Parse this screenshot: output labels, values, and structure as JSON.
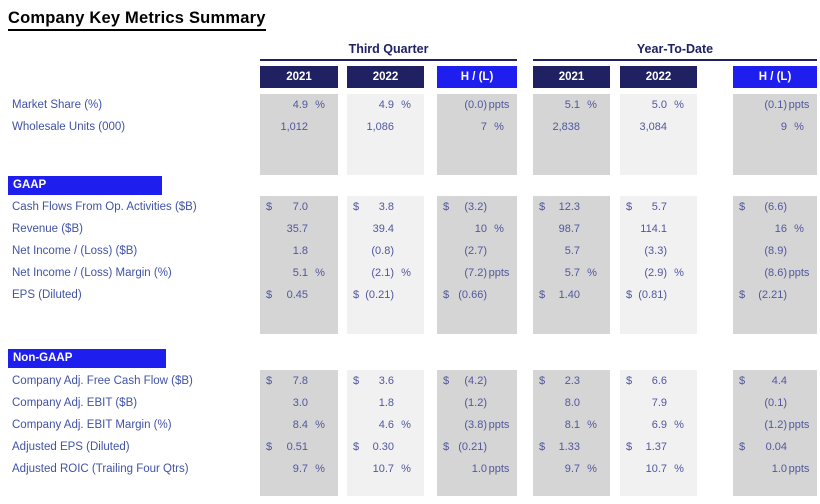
{
  "title": "Company Key Metrics Summary",
  "colors": {
    "navy": "#1F2163",
    "bright_blue": "#1E1EEF",
    "dark_cell": "#D5D5D5",
    "light_cell": "#F1F1F1",
    "label_text": "#4153A6",
    "value_text": "#50579F",
    "title_text": "#000000"
  },
  "groups": [
    {
      "label": "Third Quarter",
      "columns": [
        "2021",
        "2022",
        "H / (L)"
      ]
    },
    {
      "label": "Year-To-Date",
      "columns": [
        "2021",
        "2022",
        "H / (L)"
      ]
    }
  ],
  "sections": [
    {
      "header": "",
      "rows": [
        {
          "label": "Market Share (%)",
          "cells": [
            {
              "val": "4.9",
              "suf": "%"
            },
            {
              "val": "4.9",
              "suf": "%"
            },
            {
              "val": "(0.0)",
              "suf": "ppts"
            },
            {
              "val": "5.1",
              "suf": "%"
            },
            {
              "val": "5.0",
              "suf": "%"
            },
            {
              "val": "(0.1)",
              "suf": "ppts"
            }
          ]
        },
        {
          "label": "Wholesale Units (000)",
          "cells": [
            {
              "val": "1,012"
            },
            {
              "val": "1,086"
            },
            {
              "val": "7",
              "suf": "%"
            },
            {
              "val": "2,838"
            },
            {
              "val": "3,084"
            },
            {
              "val": "9",
              "suf": "%"
            }
          ]
        }
      ]
    },
    {
      "header": "GAAP",
      "rows": [
        {
          "label": "Cash Flows From Op. Activities ($B)",
          "cells": [
            {
              "cur": "$",
              "val": "7.0"
            },
            {
              "cur": "$",
              "val": "3.8"
            },
            {
              "cur": "$",
              "val": "(3.2)"
            },
            {
              "cur": "$",
              "val": "12.3"
            },
            {
              "cur": "$",
              "val": "5.7"
            },
            {
              "cur": "$",
              "val": "(6.6)"
            }
          ]
        },
        {
          "label": "Revenue ($B)",
          "cells": [
            {
              "val": "35.7"
            },
            {
              "val": "39.4"
            },
            {
              "val": "10",
              "suf": "%"
            },
            {
              "val": "98.7"
            },
            {
              "val": "114.1"
            },
            {
              "val": "16",
              "suf": "%"
            }
          ]
        },
        {
          "label": "Net Income / (Loss) ($B)",
          "cells": [
            {
              "val": "1.8"
            },
            {
              "val": "(0.8)"
            },
            {
              "val": "(2.7)"
            },
            {
              "val": "5.7"
            },
            {
              "val": "(3.3)"
            },
            {
              "val": "(8.9)"
            }
          ]
        },
        {
          "label": "Net Income / (Loss) Margin (%)",
          "cells": [
            {
              "val": "5.1",
              "suf": "%"
            },
            {
              "val": "(2.1)",
              "suf": "%"
            },
            {
              "val": "(7.2)",
              "suf": "ppts"
            },
            {
              "val": "5.7",
              "suf": "%"
            },
            {
              "val": "(2.9)",
              "suf": "%"
            },
            {
              "val": "(8.6)",
              "suf": "ppts"
            }
          ]
        },
        {
          "label": "EPS (Diluted)",
          "cells": [
            {
              "cur": "$",
              "val": "0.45"
            },
            {
              "cur": "$",
              "val": "(0.21)"
            },
            {
              "cur": "$",
              "val": "(0.66)"
            },
            {
              "cur": "$",
              "val": "1.40"
            },
            {
              "cur": "$",
              "val": "(0.81)"
            },
            {
              "cur": "$",
              "val": "(2.21)"
            }
          ]
        }
      ]
    },
    {
      "header": "Non-GAAP",
      "rows": [
        {
          "label": "Company Adj. Free Cash Flow ($B)",
          "cells": [
            {
              "cur": "$",
              "val": "7.8"
            },
            {
              "cur": "$",
              "val": "3.6"
            },
            {
              "cur": "$",
              "val": "(4.2)"
            },
            {
              "cur": "$",
              "val": "2.3"
            },
            {
              "cur": "$",
              "val": "6.6"
            },
            {
              "cur": "$",
              "val": "4.4"
            }
          ]
        },
        {
          "label": "Company Adj. EBIT ($B)",
          "cells": [
            {
              "val": "3.0"
            },
            {
              "val": "1.8"
            },
            {
              "val": "(1.2)"
            },
            {
              "val": "8.0"
            },
            {
              "val": "7.9"
            },
            {
              "val": "(0.1)"
            }
          ]
        },
        {
          "label": "Company Adj. EBIT Margin (%)",
          "cells": [
            {
              "val": "8.4",
              "suf": "%"
            },
            {
              "val": "4.6",
              "suf": "%"
            },
            {
              "val": "(3.8)",
              "suf": "ppts"
            },
            {
              "val": "8.1",
              "suf": "%"
            },
            {
              "val": "6.9",
              "suf": "%"
            },
            {
              "val": "(1.2)",
              "suf": "ppts"
            }
          ]
        },
        {
          "label": "Adjusted EPS (Diluted)",
          "cells": [
            {
              "cur": "$",
              "val": "0.51"
            },
            {
              "cur": "$",
              "val": "0.30"
            },
            {
              "cur": "$",
              "val": "(0.21)"
            },
            {
              "cur": "$",
              "val": "1.33"
            },
            {
              "cur": "$",
              "val": "1.37"
            },
            {
              "cur": "$",
              "val": "0.04"
            }
          ]
        },
        {
          "label": "Adjusted ROIC (Trailing Four Qtrs)",
          "cells": [
            {
              "val": "9.7",
              "suf": "%"
            },
            {
              "val": "10.7",
              "suf": "%"
            },
            {
              "val": "1.0",
              "suf": "ppts"
            },
            {
              "val": "9.7",
              "suf": "%"
            },
            {
              "val": "10.7",
              "suf": "%"
            },
            {
              "val": "1.0",
              "suf": "ppts"
            }
          ]
        }
      ]
    }
  ]
}
